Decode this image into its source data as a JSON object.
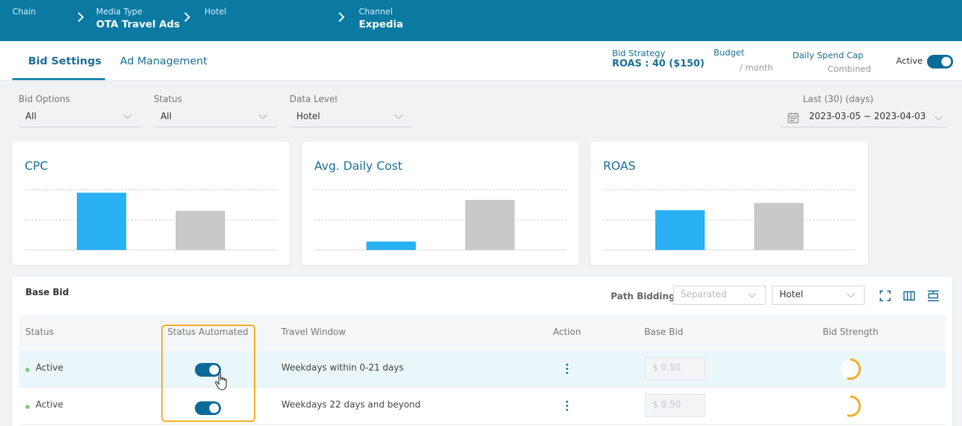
{
  "breadcrumb": {
    "chain_label": "Chain",
    "media_type_label": "Media Type",
    "media_type_value": "OTA Travel Ads",
    "hotel_label": "Hotel",
    "channel_label": "Channel",
    "channel_value": "Expedia"
  },
  "tabs": [
    {
      "label": "Bid Settings",
      "active": true
    },
    {
      "label": "Ad Management",
      "active": false
    }
  ],
  "header": {
    "bid_strategy_label": "Bid Strategy",
    "bid_strategy_value": "ROAS : 40 ($150)",
    "budget_label": "Budget",
    "budget_sub": "/ month",
    "spend_cap_label": "Daily Spend Cap",
    "spend_cap_sub": "Combined",
    "active_label": "Active"
  },
  "filters": {
    "bid_options_label": "Bid Options",
    "bid_options_value": "All",
    "status_label": "Status",
    "status_value": "All",
    "data_level_label": "Data Level",
    "data_level_value": "Hotel",
    "range_label": "Last (30) (days)",
    "range_value": "2023-03-05 ~ 2023-04-03"
  },
  "cards": [
    {
      "title": "CPC"
    },
    {
      "title": "Avg. Daily Cost"
    },
    {
      "title": "ROAS"
    }
  ],
  "chart_data": [
    {
      "type": "bar",
      "title": "CPC",
      "series": [
        {
          "values": [
            0.95,
            0.65
          ]
        }
      ],
      "colors": [
        "#29b0f4",
        "#c9c9c9"
      ],
      "ylim": [
        0,
        1
      ]
    },
    {
      "type": "bar",
      "title": "Avg. Daily Cost",
      "series": [
        {
          "values": [
            0.14,
            0.83
          ]
        }
      ],
      "colors": [
        "#29b0f4",
        "#c9c9c9"
      ],
      "ylim": [
        0,
        1
      ]
    },
    {
      "type": "bar",
      "title": "ROAS",
      "series": [
        {
          "values": [
            0.66,
            0.78
          ]
        }
      ],
      "colors": [
        "#29b0f4",
        "#c9c9c9"
      ],
      "ylim": [
        0,
        1
      ]
    }
  ],
  "base_bid": {
    "title": "Base Bid",
    "path_bidding_label": "Path Bidding",
    "path_bidding_placeholder": "Separated",
    "level_value": "Hotel",
    "columns": [
      "Status",
      "Status Automated",
      "Travel Window",
      "Action",
      "Base Bid",
      "Bid Strength"
    ],
    "rows": [
      {
        "status": "Active",
        "automated": true,
        "travel_window": "Weekdays within 0-21 days",
        "base_bid": "$  0.50",
        "strength": 0.55
      },
      {
        "status": "Active",
        "automated": true,
        "travel_window": "Weekdays 22 days and beyond",
        "base_bid": "$  0.50",
        "strength": 0.55
      }
    ]
  },
  "colors": {
    "topbar": "#0a7aa3",
    "accent": "#1a6f96",
    "bar_primary": "#29b0f4",
    "bar_secondary": "#c9c9c9",
    "highlight": "#f6a91c",
    "strength": "#f6a91c"
  }
}
